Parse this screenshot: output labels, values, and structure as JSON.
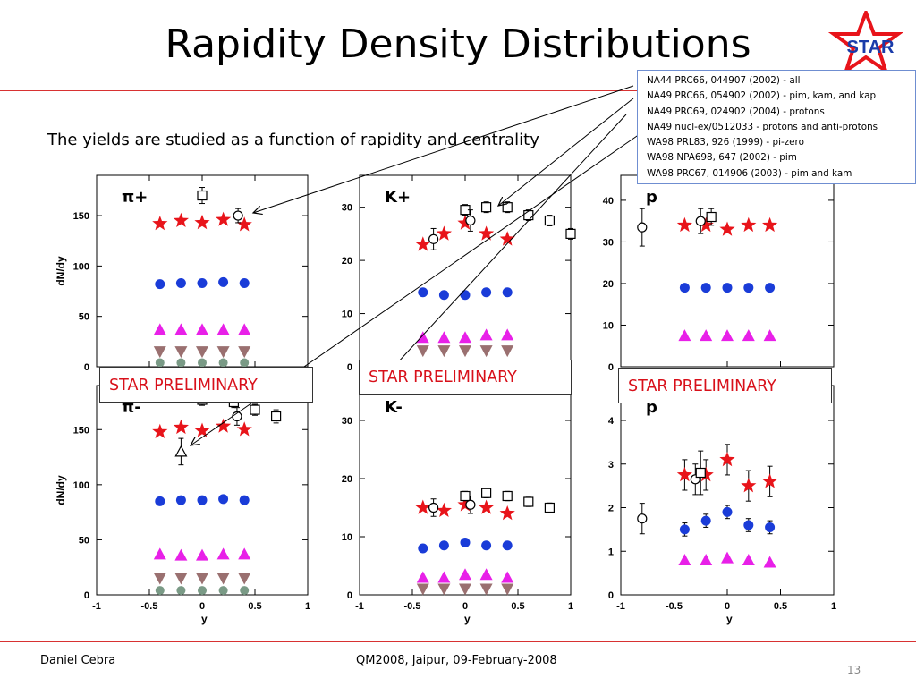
{
  "slide": {
    "title": "Rapidity Density Distributions",
    "subtitle": "The yields are studied as a function of rapidity and centrality",
    "logo_text": "STAR",
    "prelim_label": "STAR PRELIMINARY",
    "references": [
      "NA44 PRC66, 044907 (2002) - all",
      "NA49 PRC66, 054902 (2002) -  pim, kam, and kap",
      "NA49 PRC69, 024902 (2004) - protons",
      "NA49 nucl-ex/0512033 - protons and anti-protons",
      "WA98 PRL83, 926 (1999)  - pi-zero",
      "WA98 NPA698, 647 (2002)  - pim",
      "WA98 PRC67, 014906 (2003)  - pim and kam"
    ],
    "footer_left": "Daniel Cebra",
    "footer_center": "QM2008, Jaipur, 09-February-2008",
    "page_number": "13",
    "colors": {
      "accent_line": "#d83232",
      "star": "#e8141a",
      "circle": "#1a3cd8",
      "triangle": "#e820e8",
      "triangle_down": "#9a7070",
      "gray": "#7a9a86"
    }
  },
  "chart_data": [
    {
      "type": "scatter",
      "panel_label": "π+",
      "ylabel": "dN/dy",
      "xlabel": "",
      "xlim": [
        -1,
        1
      ],
      "ylim": [
        0,
        190
      ],
      "yticks": [
        0,
        50,
        100,
        150
      ],
      "xticks": [],
      "series": [
        {
          "marker": "star",
          "x": [
            -0.4,
            -0.2,
            0.0,
            0.2,
            0.4
          ],
          "y": [
            142,
            145,
            143,
            146,
            141
          ]
        },
        {
          "marker": "dot",
          "x": [
            -0.4,
            -0.2,
            0.0,
            0.2,
            0.4
          ],
          "y": [
            82,
            83,
            83,
            84,
            83
          ]
        },
        {
          "marker": "tri",
          "x": [
            -0.4,
            -0.2,
            0.0,
            0.2,
            0.4
          ],
          "y": [
            37,
            37,
            37,
            37,
            37
          ]
        },
        {
          "marker": "tridown",
          "x": [
            -0.4,
            -0.2,
            0.0,
            0.2,
            0.4
          ],
          "y": [
            15,
            15,
            15,
            15,
            15
          ]
        },
        {
          "marker": "gray",
          "x": [
            -0.4,
            -0.2,
            0.0,
            0.2,
            0.4
          ],
          "y": [
            4,
            4,
            4,
            4,
            4
          ]
        },
        {
          "marker": "square",
          "x": [
            0.0
          ],
          "y": [
            170
          ],
          "err": [
            8
          ]
        },
        {
          "marker": "opencircle",
          "x": [
            0.34
          ],
          "y": [
            150
          ],
          "err": [
            7
          ]
        }
      ]
    },
    {
      "type": "scatter",
      "panel_label": "K+",
      "ylabel": "",
      "xlabel": "",
      "xlim": [
        -1,
        1
      ],
      "ylim": [
        0,
        36
      ],
      "yticks": [
        0,
        10,
        20,
        30
      ],
      "xticks": [],
      "series": [
        {
          "marker": "star",
          "x": [
            -0.4,
            -0.2,
            0.0,
            0.2,
            0.4
          ],
          "y": [
            23,
            25,
            27,
            25,
            24
          ]
        },
        {
          "marker": "dot",
          "x": [
            -0.4,
            -0.2,
            0.0,
            0.2,
            0.4
          ],
          "y": [
            14,
            13.5,
            13.5,
            14,
            14
          ]
        },
        {
          "marker": "tri",
          "x": [
            -0.4,
            -0.2,
            0.0,
            0.2,
            0.4
          ],
          "y": [
            5.5,
            5.5,
            5.5,
            6,
            6
          ]
        },
        {
          "marker": "tridown",
          "x": [
            -0.4,
            -0.2,
            0.0,
            0.2,
            0.4
          ],
          "y": [
            3,
            3,
            3,
            3,
            3
          ]
        },
        {
          "marker": "square",
          "x": [
            0.0,
            0.2,
            0.4,
            0.6,
            0.8,
            1.0
          ],
          "y": [
            29.5,
            30,
            30,
            28.5,
            27.5,
            25
          ],
          "err": [
            1,
            1,
            1,
            1,
            1,
            1
          ]
        },
        {
          "marker": "opencircle",
          "x": [
            -0.3,
            0.05
          ],
          "y": [
            24,
            27.5
          ],
          "err": [
            2,
            2
          ]
        }
      ]
    },
    {
      "type": "scatter",
      "panel_label": "p",
      "ylabel": "",
      "xlabel": "",
      "xlim": [
        -1,
        1
      ],
      "ylim": [
        0,
        46
      ],
      "yticks": [
        0,
        10,
        20,
        30,
        40
      ],
      "xticks": [],
      "series": [
        {
          "marker": "star",
          "x": [
            -0.4,
            -0.2,
            0.0,
            0.2,
            0.4
          ],
          "y": [
            34,
            34,
            33,
            34,
            34
          ]
        },
        {
          "marker": "dot",
          "x": [
            -0.4,
            -0.2,
            0.0,
            0.2,
            0.4
          ],
          "y": [
            19,
            19,
            19,
            19,
            19
          ]
        },
        {
          "marker": "tri",
          "x": [
            -0.4,
            -0.2,
            0.0,
            0.2,
            0.4
          ],
          "y": [
            7.5,
            7.5,
            7.5,
            7.5,
            7.5
          ]
        },
        {
          "marker": "square",
          "x": [
            -0.15
          ],
          "y": [
            36
          ],
          "err": [
            2
          ]
        },
        {
          "marker": "opencircle",
          "x": [
            -0.8,
            -0.25
          ],
          "y": [
            33.5,
            35
          ],
          "err": [
            4.5,
            3
          ]
        }
      ]
    },
    {
      "type": "scatter",
      "panel_label": "π-",
      "ylabel": "dN/dy",
      "xlabel": "y",
      "xlim": [
        -1,
        1
      ],
      "ylim": [
        0,
        190
      ],
      "yticks": [
        0,
        50,
        100,
        150
      ],
      "xticks": [
        -1,
        -0.5,
        0,
        0.5,
        1
      ],
      "series": [
        {
          "marker": "star",
          "x": [
            -0.4,
            -0.2,
            0.0,
            0.2,
            0.4
          ],
          "y": [
            148,
            152,
            149,
            153,
            150
          ]
        },
        {
          "marker": "dot",
          "x": [
            -0.4,
            -0.2,
            0.0,
            0.2,
            0.4
          ],
          "y": [
            85,
            86,
            86,
            87,
            86
          ]
        },
        {
          "marker": "tri",
          "x": [
            -0.4,
            -0.2,
            0.0,
            0.2,
            0.4
          ],
          "y": [
            37,
            36,
            36,
            37,
            37
          ]
        },
        {
          "marker": "tridown",
          "x": [
            -0.4,
            -0.2,
            0.0,
            0.2,
            0.4
          ],
          "y": [
            15,
            15,
            15,
            15,
            15
          ]
        },
        {
          "marker": "gray",
          "x": [
            -0.4,
            -0.2,
            0.0,
            0.2,
            0.4
          ],
          "y": [
            4,
            4,
            4,
            4,
            4
          ]
        },
        {
          "marker": "square",
          "x": [
            0.0,
            0.3,
            0.5,
            0.7
          ],
          "y": [
            177,
            175,
            168,
            162
          ],
          "err": [
            5,
            5,
            5,
            6
          ]
        },
        {
          "marker": "opencircle",
          "x": [
            0.33
          ],
          "y": [
            162
          ],
          "err": [
            8
          ]
        },
        {
          "marker": "opentri",
          "x": [
            -0.2
          ],
          "y": [
            130
          ],
          "err": [
            12
          ]
        }
      ]
    },
    {
      "type": "scatter",
      "panel_label": "K-",
      "ylabel": "",
      "xlabel": "y",
      "xlim": [
        -1,
        1
      ],
      "ylim": [
        0,
        36
      ],
      "yticks": [
        0,
        10,
        20,
        30
      ],
      "xticks": [
        -1,
        -0.5,
        0,
        0.5,
        1
      ],
      "series": [
        {
          "marker": "star",
          "x": [
            -0.4,
            -0.2,
            0.0,
            0.2,
            0.4
          ],
          "y": [
            15,
            14.5,
            15.5,
            15,
            14
          ]
        },
        {
          "marker": "dot",
          "x": [
            -0.4,
            -0.2,
            0.0,
            0.2,
            0.4
          ],
          "y": [
            8,
            8.5,
            9,
            8.5,
            8.5
          ]
        },
        {
          "marker": "tri",
          "x": [
            -0.4,
            -0.2,
            0.0,
            0.2,
            0.4
          ],
          "y": [
            3,
            3,
            3.5,
            3.5,
            3
          ]
        },
        {
          "marker": "tridown",
          "x": [
            -0.4,
            -0.2,
            0.0,
            0.2,
            0.4
          ],
          "y": [
            1,
            1,
            1,
            1,
            1
          ]
        },
        {
          "marker": "square",
          "x": [
            0.0,
            0.2,
            0.4,
            0.6,
            0.8
          ],
          "y": [
            17,
            17.5,
            17,
            16,
            15
          ],
          "err": [
            0.8,
            0.8,
            0.8,
            0.8,
            0.8
          ]
        },
        {
          "marker": "opencircle",
          "x": [
            -0.3,
            0.05
          ],
          "y": [
            15,
            15.5
          ],
          "err": [
            1.5,
            1.5
          ]
        }
      ]
    },
    {
      "type": "scatter",
      "panel_label": "p̄",
      "ylabel": "",
      "xlabel": "y",
      "xlim": [
        -1,
        1
      ],
      "ylim": [
        0,
        4.8
      ],
      "yticks": [
        0,
        1,
        2,
        3,
        4
      ],
      "xticks": [
        -1,
        -0.5,
        0,
        0.5,
        1
      ],
      "series": [
        {
          "marker": "star",
          "x": [
            -0.4,
            -0.2,
            0.0,
            0.2,
            0.4
          ],
          "y": [
            2.75,
            2.75,
            3.1,
            2.5,
            2.6
          ],
          "err": [
            0.35,
            0.35,
            0.35,
            0.35,
            0.35
          ]
        },
        {
          "marker": "dot",
          "x": [
            -0.4,
            -0.2,
            0.0,
            0.2,
            0.4
          ],
          "y": [
            1.5,
            1.7,
            1.9,
            1.6,
            1.55
          ],
          "err": [
            0.15,
            0.15,
            0.15,
            0.15,
            0.15
          ]
        },
        {
          "marker": "tri",
          "x": [
            -0.4,
            -0.2,
            0.0,
            0.2,
            0.4
          ],
          "y": [
            0.8,
            0.8,
            0.85,
            0.8,
            0.75
          ]
        },
        {
          "marker": "opencircle",
          "x": [
            -0.8,
            -0.3
          ],
          "y": [
            1.75,
            2.65
          ],
          "err": [
            0.35,
            0.35
          ]
        },
        {
          "marker": "square",
          "x": [
            -0.25
          ],
          "y": [
            2.8
          ],
          "err": [
            0.5
          ]
        }
      ]
    }
  ]
}
